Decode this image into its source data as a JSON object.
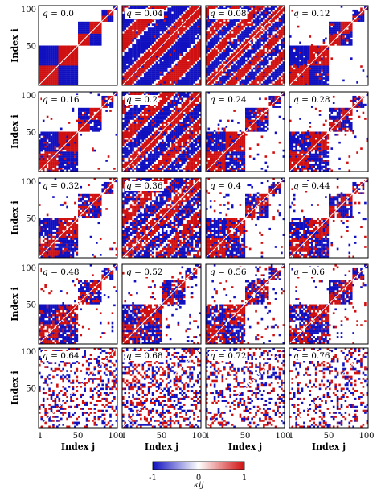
{
  "chart_data": {
    "type": "heatmap",
    "colormap": {
      "negative": "#1010c0",
      "zero": "#ffffff",
      "positive": "#d01010"
    },
    "xlabel": "Index j",
    "ylabel": "Index i",
    "x_ticks": [
      "1",
      "50",
      "100"
    ],
    "y_ticks": [
      "100",
      "50"
    ],
    "colorbar": {
      "label": "κij",
      "ticks": [
        "-1",
        "0",
        "1"
      ],
      "range": [
        -1,
        1
      ]
    },
    "rows": 5,
    "cols": 4,
    "panels": [
      {
        "q": "0.0",
        "pattern": "blocks",
        "blocks": [
          [
            1,
            50
          ],
          [
            51,
            80
          ],
          [
            81,
            95
          ],
          [
            96,
            100
          ]
        ],
        "noise": 0.0
      },
      {
        "q": "0.04",
        "pattern": "waves",
        "period": 52,
        "noise": 0.04
      },
      {
        "q": "0.08",
        "pattern": "waves",
        "period": 30,
        "noise": 0.1
      },
      {
        "q": "0.12",
        "pattern": "blocks",
        "blocks": [
          [
            1,
            50
          ],
          [
            51,
            80
          ],
          [
            81,
            95
          ],
          [
            96,
            100
          ]
        ],
        "noise": 0.12
      },
      {
        "q": "0.16",
        "pattern": "blocks",
        "blocks": [
          [
            1,
            50
          ],
          [
            51,
            80
          ],
          [
            81,
            95
          ],
          [
            96,
            100
          ]
        ],
        "noise": 0.16
      },
      {
        "q": "0.2",
        "pattern": "waves",
        "period": 40,
        "noise": 0.16
      },
      {
        "q": "0.24",
        "pattern": "blocks",
        "blocks": [
          [
            1,
            50
          ],
          [
            51,
            80
          ],
          [
            81,
            95
          ],
          [
            96,
            100
          ]
        ],
        "noise": 0.2
      },
      {
        "q": "0.28",
        "pattern": "blocks",
        "blocks": [
          [
            1,
            50
          ],
          [
            51,
            80
          ],
          [
            81,
            95
          ],
          [
            96,
            100
          ]
        ],
        "noise": 0.22
      },
      {
        "q": "0.32",
        "pattern": "blocks",
        "blocks": [
          [
            1,
            50
          ],
          [
            51,
            80
          ],
          [
            81,
            95
          ],
          [
            96,
            100
          ]
        ],
        "noise": 0.25
      },
      {
        "q": "0.36",
        "pattern": "waves",
        "period": 48,
        "noise": 0.25
      },
      {
        "q": "0.4",
        "pattern": "blocks",
        "blocks": [
          [
            1,
            50
          ],
          [
            51,
            80
          ],
          [
            81,
            95
          ],
          [
            96,
            100
          ]
        ],
        "noise": 0.3
      },
      {
        "q": "0.44",
        "pattern": "blocks",
        "blocks": [
          [
            1,
            50
          ],
          [
            51,
            80
          ],
          [
            81,
            95
          ],
          [
            96,
            100
          ]
        ],
        "noise": 0.3
      },
      {
        "q": "0.48",
        "pattern": "blocks",
        "blocks": [
          [
            1,
            50
          ],
          [
            51,
            80
          ],
          [
            81,
            95
          ],
          [
            96,
            100
          ]
        ],
        "noise": 0.32
      },
      {
        "q": "0.52",
        "pattern": "blocks",
        "blocks": [
          [
            1,
            50
          ],
          [
            51,
            80
          ],
          [
            81,
            95
          ],
          [
            96,
            100
          ]
        ],
        "noise": 0.34
      },
      {
        "q": "0.56",
        "pattern": "blocks",
        "blocks": [
          [
            1,
            50
          ],
          [
            51,
            80
          ],
          [
            81,
            95
          ],
          [
            96,
            100
          ]
        ],
        "noise": 0.38
      },
      {
        "q": "0.6",
        "pattern": "blocks",
        "blocks": [
          [
            1,
            50
          ],
          [
            51,
            80
          ],
          [
            81,
            95
          ],
          [
            96,
            100
          ]
        ],
        "noise": 0.36
      },
      {
        "q": "0.64",
        "pattern": "random",
        "density": 0.28
      },
      {
        "q": "0.68",
        "pattern": "random",
        "density": 0.36
      },
      {
        "q": "0.72",
        "pattern": "random",
        "density": 0.3
      },
      {
        "q": "0.76",
        "pattern": "random",
        "density": 0.25
      }
    ]
  }
}
